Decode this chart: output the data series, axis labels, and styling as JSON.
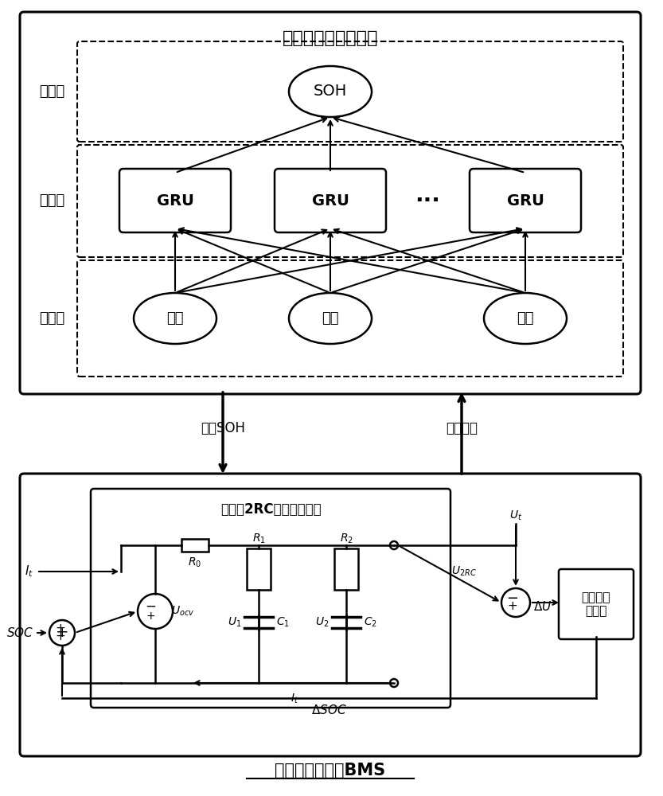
{
  "title_top": "数据调度中心计算机",
  "title_bottom": "分布式储能单元BMS",
  "output_label": "输出层",
  "hidden_label": "隐含层",
  "input_label": "输入层",
  "soh_label": "SOH",
  "gru_labels": [
    "GRU",
    "GRU",
    "GRU"
  ],
  "dots_label": "···",
  "input_labels": [
    "电流",
    "电压",
    "温度"
  ],
  "arrow_left_label": "电池SOH",
  "arrow_right_label": "历史数据",
  "circuit_title": "锂电池2RC等效电路模型",
  "ekf_label": "扩展卡尔\n曼滤波",
  "bg_color": "#ffffff",
  "box_color": "#000000"
}
